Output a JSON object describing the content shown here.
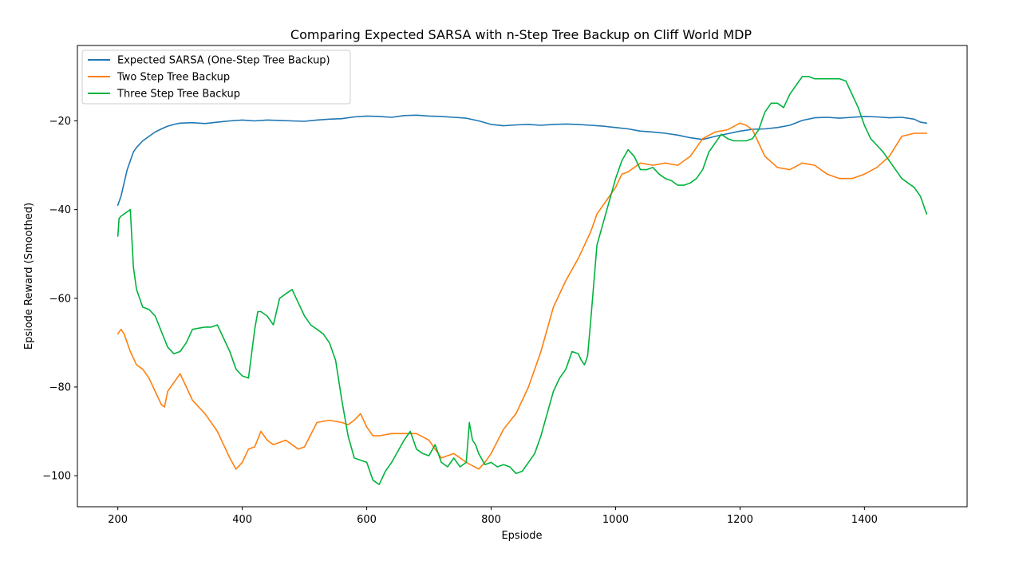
{
  "chart_data": {
    "type": "line",
    "title": "Comparing Expected SARSA with n-Step Tree Backup on Cliff World MDP",
    "xlabel": "Epsiode",
    "ylabel": "Epsiode Reward (Smoothed)",
    "xlim": [
      135,
      1565
    ],
    "ylim": [
      -107,
      -3
    ],
    "xticks": [
      200,
      400,
      600,
      800,
      1000,
      1200,
      1400
    ],
    "yticks": [
      -20,
      -40,
      -60,
      -80,
      -100
    ],
    "grid": false,
    "legend_position": "top-left",
    "series": [
      {
        "name": "Expected SARSA (One-Step Tree Backup)",
        "color": "#1f77b4",
        "x": [
          200,
          205,
          210,
          215,
          220,
          225,
          230,
          240,
          250,
          260,
          270,
          280,
          290,
          300,
          320,
          340,
          360,
          380,
          400,
          420,
          440,
          460,
          480,
          500,
          520,
          540,
          560,
          580,
          600,
          620,
          640,
          660,
          680,
          700,
          720,
          740,
          760,
          780,
          800,
          820,
          840,
          860,
          880,
          900,
          920,
          940,
          960,
          980,
          1000,
          1020,
          1040,
          1060,
          1080,
          1100,
          1120,
          1140,
          1160,
          1180,
          1200,
          1220,
          1240,
          1260,
          1280,
          1300,
          1320,
          1340,
          1360,
          1380,
          1400,
          1420,
          1440,
          1460,
          1480,
          1490,
          1500
        ],
        "y": [
          -39,
          -37,
          -34,
          -31,
          -29,
          -27,
          -26,
          -24.5,
          -23.5,
          -22.5,
          -21.8,
          -21.2,
          -20.8,
          -20.5,
          -20.4,
          -20.6,
          -20.3,
          -20,
          -19.8,
          -20,
          -19.8,
          -19.9,
          -20,
          -20.1,
          -19.8,
          -19.6,
          -19.5,
          -19.1,
          -18.9,
          -19,
          -19.2,
          -18.8,
          -18.7,
          -18.9,
          -19,
          -19.2,
          -19.4,
          -20,
          -20.8,
          -21.1,
          -20.9,
          -20.8,
          -21,
          -20.8,
          -20.7,
          -20.8,
          -21,
          -21.2,
          -21.5,
          -21.8,
          -22.3,
          -22.5,
          -22.8,
          -23.2,
          -23.8,
          -24.2,
          -23.5,
          -22.9,
          -22.3,
          -21.9,
          -21.8,
          -21.5,
          -21,
          -19.9,
          -19.3,
          -19.2,
          -19.4,
          -19.2,
          -19,
          -19.1,
          -19.3,
          -19.2,
          -19.6,
          -20.3,
          -20.5
        ]
      },
      {
        "name": "Two Step Tree Backup",
        "color": "#ff7f0e",
        "x": [
          200,
          205,
          210,
          215,
          220,
          230,
          240,
          250,
          260,
          270,
          275,
          280,
          290,
          300,
          310,
          320,
          340,
          360,
          370,
          380,
          390,
          400,
          410,
          420,
          430,
          440,
          450,
          460,
          470,
          480,
          490,
          500,
          520,
          540,
          560,
          570,
          580,
          590,
          600,
          610,
          620,
          640,
          660,
          680,
          700,
          720,
          740,
          760,
          780,
          790,
          800,
          820,
          840,
          860,
          880,
          900,
          920,
          940,
          960,
          970,
          980,
          1000,
          1010,
          1020,
          1040,
          1060,
          1080,
          1100,
          1120,
          1140,
          1160,
          1180,
          1200,
          1210,
          1220,
          1240,
          1260,
          1280,
          1300,
          1320,
          1340,
          1360,
          1380,
          1400,
          1420,
          1440,
          1460,
          1480,
          1500
        ],
        "y": [
          -68,
          -67,
          -68,
          -70,
          -72,
          -75,
          -76,
          -78,
          -81,
          -84,
          -84.5,
          -81,
          -79,
          -77,
          -80,
          -83,
          -86,
          -90,
          -93,
          -96,
          -98.5,
          -97,
          -94,
          -93.5,
          -90,
          -92,
          -93,
          -92.5,
          -92,
          -93,
          -94,
          -93.5,
          -88,
          -87.5,
          -88,
          -88.5,
          -87.5,
          -86,
          -89,
          -91,
          -91,
          -90.5,
          -90.5,
          -90.5,
          -92,
          -96,
          -95,
          -97,
          -98.5,
          -97,
          -95,
          -89.5,
          -86,
          -80,
          -72,
          -62,
          -56,
          -51,
          -45,
          -41,
          -39,
          -35,
          -32,
          -31.5,
          -29.5,
          -30,
          -29.5,
          -30,
          -28,
          -24,
          -22.5,
          -22,
          -20.5,
          -21,
          -22,
          -28,
          -30.5,
          -31,
          -29.5,
          -30,
          -32,
          -33,
          -33,
          -32,
          -30.5,
          -28,
          -23.5,
          -22.8,
          -22.8
        ]
      },
      {
        "name": "Three Step Tree Backup",
        "color": "#00b33c",
        "x": [
          200,
          202,
          205,
          210,
          215,
          220,
          225,
          230,
          240,
          250,
          260,
          270,
          280,
          290,
          300,
          310,
          320,
          340,
          350,
          360,
          370,
          380,
          390,
          400,
          410,
          420,
          425,
          430,
          440,
          450,
          460,
          470,
          480,
          490,
          500,
          510,
          520,
          530,
          540,
          550,
          560,
          570,
          580,
          590,
          600,
          610,
          620,
          630,
          640,
          660,
          670,
          680,
          690,
          700,
          710,
          720,
          730,
          740,
          750,
          760,
          765,
          770,
          775,
          780,
          790,
          800,
          810,
          820,
          830,
          840,
          850,
          860,
          870,
          880,
          890,
          900,
          910,
          920,
          930,
          940,
          945,
          950,
          955,
          960,
          970,
          980,
          990,
          1000,
          1010,
          1020,
          1030,
          1040,
          1050,
          1060,
          1070,
          1080,
          1090,
          1100,
          1110,
          1120,
          1130,
          1140,
          1150,
          1160,
          1170,
          1180,
          1190,
          1200,
          1210,
          1220,
          1230,
          1240,
          1250,
          1260,
          1270,
          1280,
          1290,
          1300,
          1310,
          1320,
          1330,
          1340,
          1350,
          1360,
          1370,
          1380,
          1390,
          1400,
          1410,
          1420,
          1430,
          1440,
          1450,
          1460,
          1470,
          1480,
          1490,
          1500
        ],
        "y": [
          -46,
          -42,
          -41.5,
          -41,
          -40.5,
          -40,
          -53,
          -58,
          -62,
          -62.5,
          -64,
          -67.5,
          -71,
          -72.5,
          -72,
          -70,
          -67,
          -66.5,
          -66.5,
          -66,
          -69,
          -72,
          -76,
          -77.5,
          -78,
          -67,
          -63,
          -63,
          -64,
          -66,
          -60,
          -59,
          -58,
          -61,
          -64,
          -66,
          -67,
          -68,
          -70,
          -74,
          -83,
          -91,
          -96,
          -96.5,
          -97,
          -101,
          -102,
          -99,
          -97,
          -92,
          -90,
          -94,
          -95,
          -95.5,
          -93,
          -97,
          -98,
          -96,
          -98,
          -97,
          -88,
          -92,
          -93,
          -95,
          -97.5,
          -97,
          -98,
          -97.5,
          -98,
          -99.5,
          -99,
          -97,
          -95,
          -91,
          -86,
          -81,
          -78,
          -76,
          -72,
          -72.5,
          -74,
          -75,
          -73,
          -65,
          -48,
          -43,
          -38,
          -33,
          -29,
          -26.5,
          -28,
          -31,
          -31,
          -30.5,
          -32,
          -33,
          -33.5,
          -34.5,
          -34.5,
          -34,
          -33,
          -31,
          -27,
          -25,
          -23,
          -24,
          -24.5,
          -24.5,
          -24.5,
          -24,
          -22,
          -18,
          -16,
          -16,
          -17,
          -14,
          -12,
          -10,
          -10,
          -10.5,
          -10.5,
          -10.5,
          -10.5,
          -10.5,
          -11,
          -14,
          -17,
          -21,
          -24,
          -25.5,
          -27,
          -29,
          -31,
          -33,
          -34,
          -35,
          -37,
          -41
        ]
      }
    ]
  }
}
